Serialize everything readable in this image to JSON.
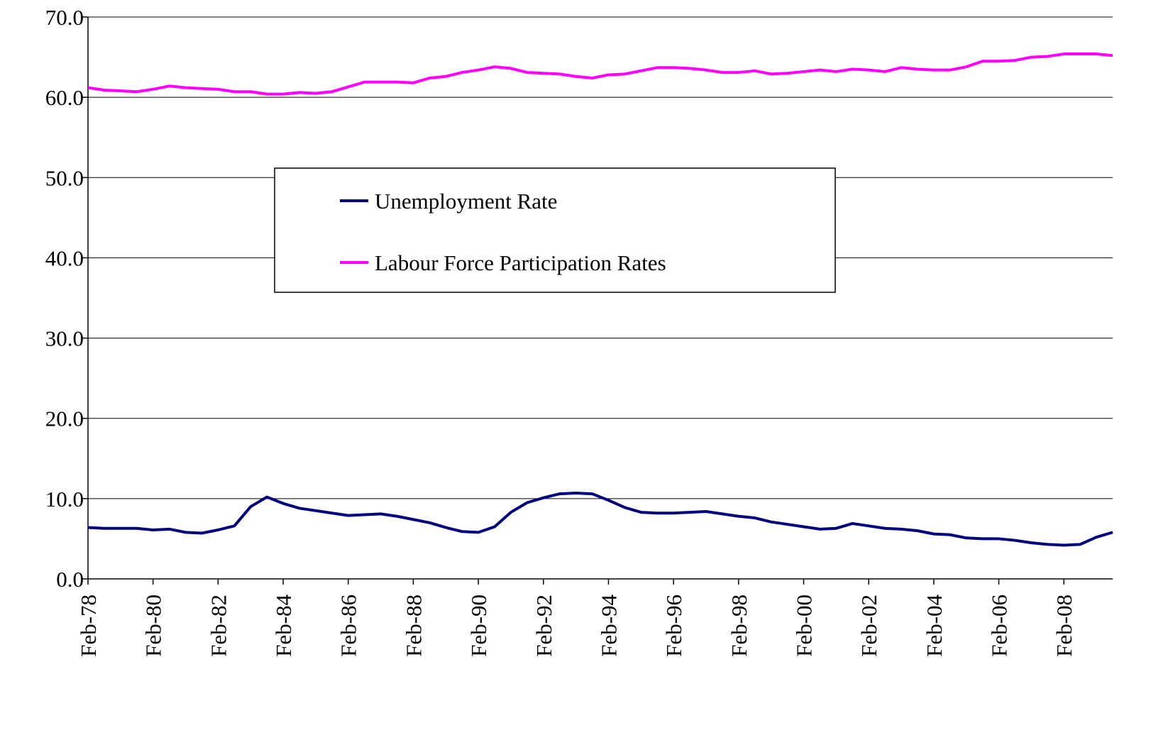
{
  "chart_data": {
    "type": "line",
    "x": [
      "1978-02",
      "1978-08",
      "1979-02",
      "1979-08",
      "1980-02",
      "1980-08",
      "1981-02",
      "1981-08",
      "1982-02",
      "1982-08",
      "1983-02",
      "1983-08",
      "1984-02",
      "1984-08",
      "1985-02",
      "1985-08",
      "1986-02",
      "1986-08",
      "1987-02",
      "1987-08",
      "1988-02",
      "1988-08",
      "1989-02",
      "1989-08",
      "1990-02",
      "1990-08",
      "1991-02",
      "1991-08",
      "1992-02",
      "1992-08",
      "1993-02",
      "1993-08",
      "1994-02",
      "1994-08",
      "1995-02",
      "1995-08",
      "1996-02",
      "1996-08",
      "1997-02",
      "1997-08",
      "1998-02",
      "1998-08",
      "1999-02",
      "1999-08",
      "2000-02",
      "2000-08",
      "2001-02",
      "2001-08",
      "2002-02",
      "2002-08",
      "2003-02",
      "2003-08",
      "2004-02",
      "2004-08",
      "2005-02",
      "2005-08",
      "2006-02",
      "2006-08",
      "2007-02",
      "2007-08",
      "2008-02",
      "2008-08",
      "2009-02",
      "2009-08"
    ],
    "series": [
      {
        "name": "Unemployment Rate",
        "color": "#000080",
        "values": [
          6.4,
          6.3,
          6.3,
          6.3,
          6.1,
          6.2,
          5.8,
          5.7,
          6.1,
          6.6,
          9.0,
          10.2,
          9.4,
          8.8,
          8.5,
          8.2,
          7.9,
          8.0,
          8.1,
          7.8,
          7.4,
          7.0,
          6.4,
          5.9,
          5.8,
          6.5,
          8.3,
          9.5,
          10.1,
          10.6,
          10.7,
          10.6,
          9.8,
          8.9,
          8.3,
          8.2,
          8.2,
          8.3,
          8.4,
          8.1,
          7.8,
          7.6,
          7.1,
          6.8,
          6.5,
          6.2,
          6.3,
          6.9,
          6.6,
          6.3,
          6.2,
          6.0,
          5.6,
          5.5,
          5.1,
          5.0,
          5.0,
          4.8,
          4.5,
          4.3,
          4.2,
          4.3,
          5.2,
          5.8
        ]
      },
      {
        "name": "Labour Force Participation Rates",
        "color": "#ff00ff",
        "values": [
          61.2,
          60.9,
          60.8,
          60.7,
          61.0,
          61.4,
          61.2,
          61.1,
          61.0,
          60.7,
          60.7,
          60.4,
          60.4,
          60.6,
          60.5,
          60.7,
          61.3,
          61.9,
          61.9,
          61.9,
          61.8,
          62.4,
          62.6,
          63.1,
          63.4,
          63.8,
          63.6,
          63.1,
          63.0,
          62.9,
          62.6,
          62.4,
          62.8,
          62.9,
          63.3,
          63.7,
          63.7,
          63.6,
          63.4,
          63.1,
          63.1,
          63.3,
          62.9,
          63.0,
          63.2,
          63.4,
          63.2,
          63.5,
          63.4,
          63.2,
          63.7,
          63.5,
          63.4,
          63.4,
          63.8,
          64.5,
          64.5,
          64.6,
          65.0,
          65.1,
          65.4,
          65.4,
          65.4,
          65.2
        ]
      }
    ],
    "xlim": [
      "1978-02",
      "2009-08"
    ],
    "xticks": [
      {
        "value": "1978-02",
        "label": "Feb-78"
      },
      {
        "value": "1980-02",
        "label": "Feb-80"
      },
      {
        "value": "1982-02",
        "label": "Feb-82"
      },
      {
        "value": "1984-02",
        "label": "Feb-84"
      },
      {
        "value": "1986-02",
        "label": "Feb-86"
      },
      {
        "value": "1988-02",
        "label": "Feb-88"
      },
      {
        "value": "1990-02",
        "label": "Feb-90"
      },
      {
        "value": "1992-02",
        "label": "Feb-92"
      },
      {
        "value": "1994-02",
        "label": "Feb-94"
      },
      {
        "value": "1996-02",
        "label": "Feb-96"
      },
      {
        "value": "1998-02",
        "label": "Feb-98"
      },
      {
        "value": "2000-02",
        "label": "Feb-00"
      },
      {
        "value": "2002-02",
        "label": "Feb-02"
      },
      {
        "value": "2004-02",
        "label": "Feb-04"
      },
      {
        "value": "2006-02",
        "label": "Feb-06"
      },
      {
        "value": "2008-02",
        "label": "Feb-08"
      }
    ],
    "ylim": [
      0,
      70
    ],
    "yticks": [
      {
        "value": 0,
        "label": "0.0"
      },
      {
        "value": 10,
        "label": "10.0"
      },
      {
        "value": 20,
        "label": "20.0"
      },
      {
        "value": 30,
        "label": "30.0"
      },
      {
        "value": 40,
        "label": "40.0"
      },
      {
        "value": 50,
        "label": "50.0"
      },
      {
        "value": 60,
        "label": "60.0"
      },
      {
        "value": 70,
        "label": "70.0"
      }
    ],
    "grid": true,
    "legend": "upper center"
  }
}
